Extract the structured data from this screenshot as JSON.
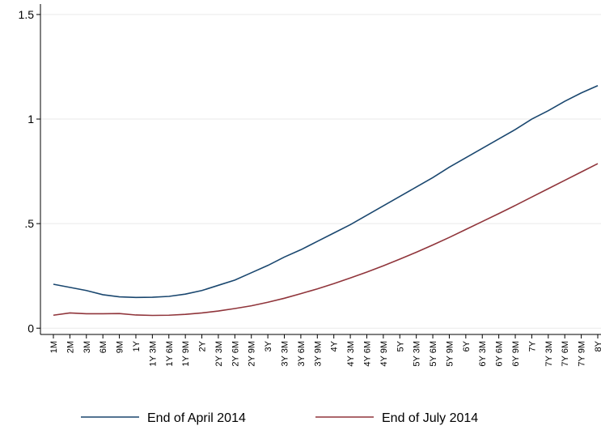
{
  "chart_data": {
    "type": "line",
    "categories": [
      "1M",
      "2M",
      "3M",
      "6M",
      "9M",
      "1Y",
      "1Y 3M",
      "1Y 6M",
      "1Y 9M",
      "2Y",
      "2Y 3M",
      "2Y 6M",
      "2Y 9M",
      "3Y",
      "3Y 3M",
      "3Y 6M",
      "3Y 9M",
      "4Y",
      "4Y 3M",
      "4Y 6M",
      "4Y 9M",
      "5Y",
      "5Y 3M",
      "5Y 6M",
      "5Y 9M",
      "6Y",
      "6Y 3M",
      "6Y 6M",
      "6Y 9M",
      "7Y",
      "7Y 3M",
      "7Y 6M",
      "7Y 9M",
      "8Y"
    ],
    "series": [
      {
        "name": "End of April 2014",
        "color": "#1a476f",
        "values": [
          0.21,
          0.195,
          0.18,
          0.16,
          0.15,
          0.147,
          0.148,
          0.152,
          0.163,
          0.18,
          0.205,
          0.23,
          0.265,
          0.3,
          0.34,
          0.375,
          0.415,
          0.455,
          0.495,
          0.54,
          0.585,
          0.63,
          0.675,
          0.72,
          0.77,
          0.815,
          0.86,
          0.905,
          0.95,
          1.0,
          1.04,
          1.085,
          1.125,
          1.16
        ]
      },
      {
        "name": "End of July 2014",
        "color": "#90353b",
        "values": [
          0.062,
          0.073,
          0.069,
          0.069,
          0.07,
          0.063,
          0.061,
          0.062,
          0.066,
          0.073,
          0.082,
          0.094,
          0.107,
          0.124,
          0.143,
          0.165,
          0.188,
          0.213,
          0.24,
          0.268,
          0.298,
          0.33,
          0.363,
          0.398,
          0.434,
          0.472,
          0.51,
          0.548,
          0.587,
          0.627,
          0.667,
          0.707,
          0.747,
          0.787
        ]
      }
    ],
    "ylim": [
      -0.03,
      1.55
    ],
    "yticks": [
      0,
      {
        "value": 0.5,
        "label": ".5"
      },
      1,
      1.5
    ],
    "grid": true,
    "legend": "bottom"
  }
}
